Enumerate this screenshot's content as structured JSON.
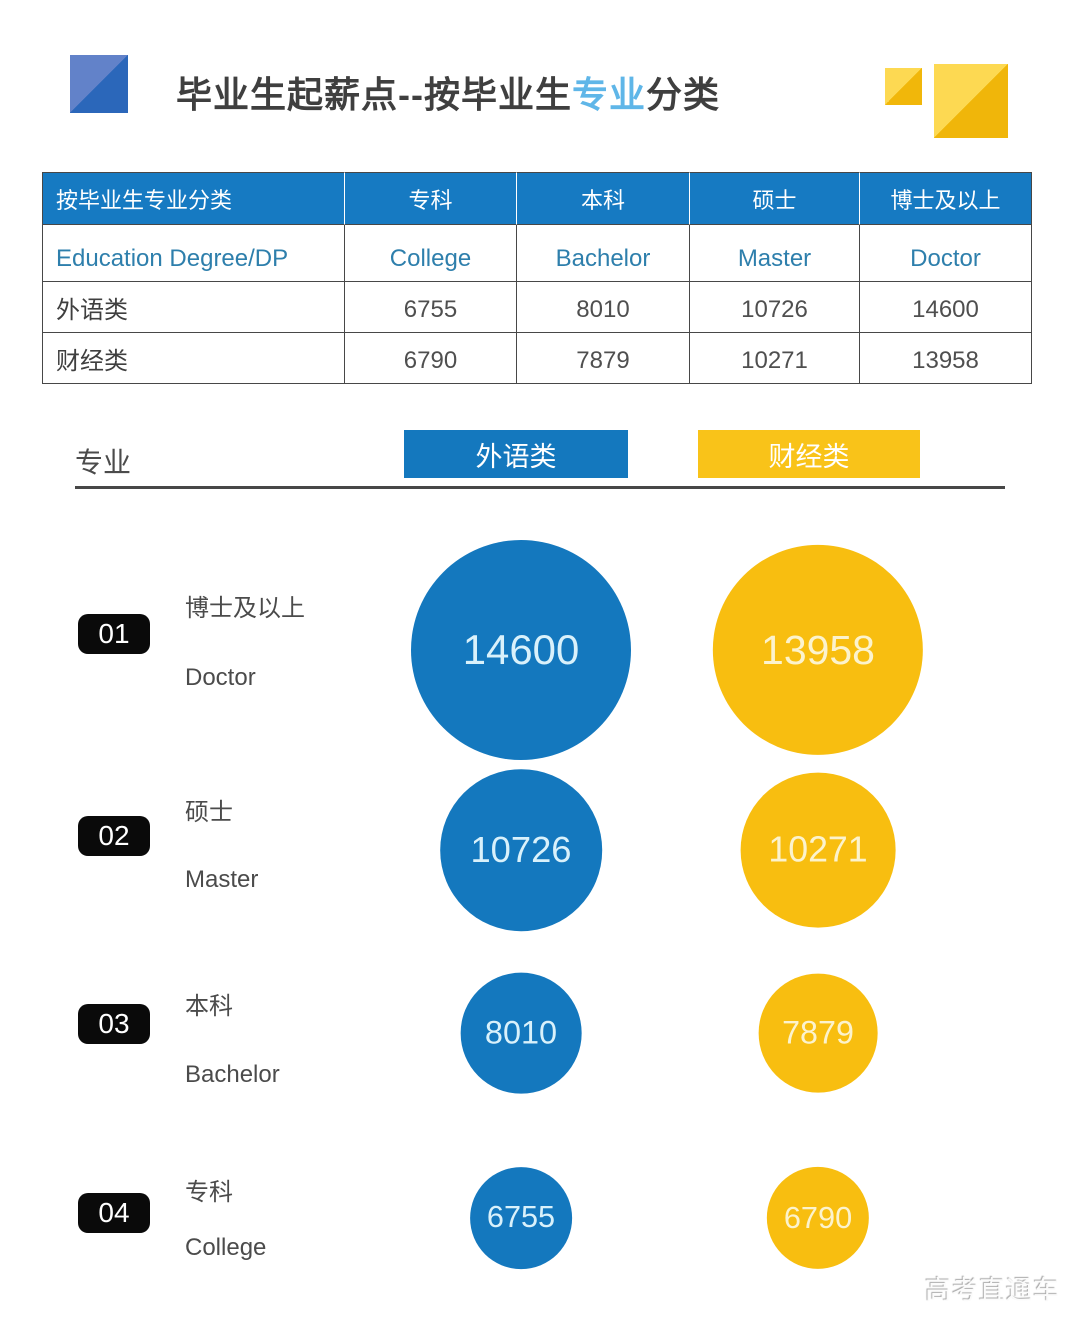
{
  "page": {
    "title_prefix": "毕业生起薪点--按毕业生",
    "title_highlight": "专业",
    "title_suffix": "分类",
    "watermark": "高考直通车"
  },
  "colors": {
    "blue": "#1478BE",
    "header_blue": "#167AC2",
    "yellow": "#F8BE10",
    "legend_yellow": "#F9C319",
    "title_highlight": "#5FB6E8"
  },
  "table": {
    "header": [
      "按毕业生专业分类",
      "专科",
      "本科",
      "硕士",
      "博士及以上"
    ],
    "subheader": [
      "Education Degree/DP",
      "College",
      "Bachelor",
      "Master",
      "Doctor"
    ],
    "rows": [
      {
        "label": "外语类",
        "values": [
          "6755",
          "8010",
          "10726",
          "14600"
        ]
      },
      {
        "label": "财经类",
        "values": [
          "6790",
          "7879",
          "10271",
          "13958"
        ]
      }
    ]
  },
  "legend": {
    "axis_label": "专业",
    "series": [
      {
        "label": "外语类",
        "color": "#1478BE"
      },
      {
        "label": "财经类",
        "color": "#F9C319"
      }
    ]
  },
  "bubbles": {
    "rows": [
      {
        "index": "01",
        "label_cn": "博士及以上",
        "label_en": "Doctor",
        "blue": "14600",
        "yellow": "13958"
      },
      {
        "index": "02",
        "label_cn": "硕士",
        "label_en": "Master",
        "blue": "10726",
        "yellow": "10271"
      },
      {
        "index": "03",
        "label_cn": "本科",
        "label_en": "Bachelor",
        "blue": "8010",
        "yellow": "7879"
      },
      {
        "index": "04",
        "label_cn": "专科",
        "label_en": "College",
        "blue": "6755",
        "yellow": "6790"
      }
    ]
  },
  "chart_data": {
    "type": "scatter",
    "subtype": "bubble-comparison",
    "title": "毕业生起薪点--按毕业生专业分类",
    "categories": [
      "博士及以上 Doctor",
      "硕士 Master",
      "本科 Bachelor",
      "专科 College"
    ],
    "series": [
      {
        "name": "外语类",
        "color": "#1478BE",
        "values": [
          14600,
          10726,
          8010,
          6755
        ]
      },
      {
        "name": "财经类",
        "color": "#F8BE10",
        "values": [
          13958,
          10271,
          7879,
          6790
        ]
      }
    ],
    "size_encoding": "circle diameter proportional to salary value",
    "legend_position": "top",
    "grid": false
  }
}
